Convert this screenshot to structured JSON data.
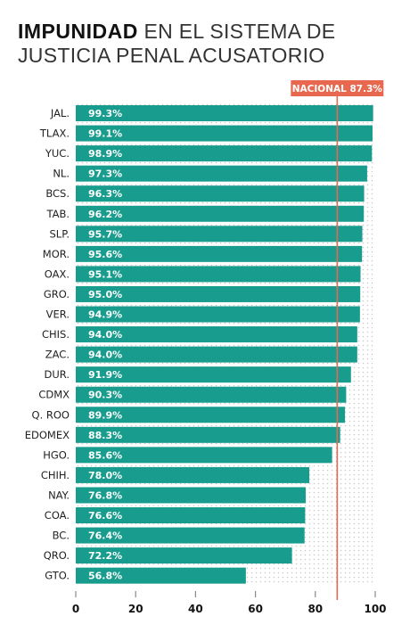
{
  "title": {
    "bold": "IMPUNIDAD",
    "rest": " EN EL SISTEMA DE JUSTICIA PENAL ACUSATORIO"
  },
  "colors": {
    "bar": "#179c8d",
    "reference_line": "#e8684f",
    "tick_line": "#888888",
    "text": "#222222"
  },
  "chart_data": {
    "type": "bar",
    "orientation": "horizontal",
    "categories": [
      "JAL.",
      "TLAX.",
      "YUC.",
      "NL.",
      "BCS.",
      "TAB.",
      "SLP.",
      "MOR.",
      "OAX.",
      "GRO.",
      "VER.",
      "CHIS.",
      "ZAC.",
      "DUR.",
      "CDMX",
      "Q. ROO",
      "EDOMEX",
      "HGO.",
      "CHIH.",
      "NAY.",
      "COA.",
      "BC.",
      "QRO.",
      "GTO."
    ],
    "values": [
      99.3,
      99.1,
      98.9,
      97.3,
      96.3,
      96.2,
      95.7,
      95.6,
      95.1,
      95.0,
      94.9,
      94.0,
      94.0,
      91.9,
      90.3,
      89.9,
      88.3,
      85.6,
      78.0,
      76.8,
      76.6,
      76.4,
      72.2,
      56.8
    ],
    "value_labels": [
      "99.3%",
      "99.1%",
      "98.9%",
      "97.3%",
      "96.3%",
      "96.2%",
      "95.7%",
      "95.6%",
      "95.1%",
      "95.0%",
      "94.9%",
      "94.0%",
      "94.0%",
      "91.9%",
      "90.3%",
      "89.9%",
      "88.3%",
      "85.6%",
      "78.0%",
      "76.8%",
      "76.6%",
      "76.4%",
      "72.2%",
      "56.8%"
    ],
    "xlim": [
      0,
      100
    ],
    "x_ticks": [
      0,
      20,
      40,
      60,
      80,
      100
    ],
    "x_tick_labels": [
      "0",
      "20",
      "40",
      "60",
      "80",
      "100"
    ],
    "reference": {
      "value": 87.3,
      "label": "NACIONAL 87.3%"
    },
    "title": "IMPUNIDAD EN EL SISTEMA DE JUSTICIA PENAL ACUSATORIO",
    "xlabel": "",
    "ylabel": "",
    "grid": false,
    "legend": false
  }
}
